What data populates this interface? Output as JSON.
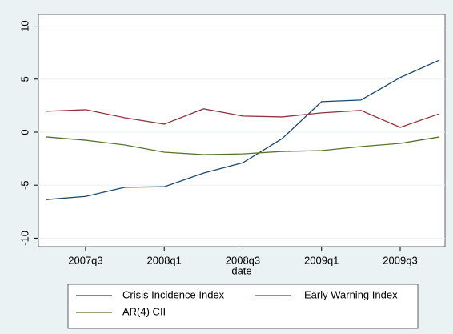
{
  "chart_data": {
    "type": "line",
    "x": [
      189,
      190,
      191,
      192,
      193,
      194,
      195,
      196,
      197,
      198,
      199
    ],
    "xlim": [
      188.8,
      199.14
    ],
    "xticks": [
      {
        "value": 190,
        "label": "2007q3"
      },
      {
        "value": 192,
        "label": "2008q1"
      },
      {
        "value": 194,
        "label": "2008q3"
      },
      {
        "value": 196,
        "label": "2009q1"
      },
      {
        "value": 198,
        "label": "2009q3"
      }
    ],
    "x_label": "date",
    "ylim": [
      -10.8,
      11.1
    ],
    "yticks": [
      -10,
      -5,
      0,
      5,
      10
    ],
    "grid": true,
    "series": [
      {
        "name": "Crisis Incidence Index",
        "color": "#1a476f",
        "values": [
          -6.36,
          -6.06,
          -5.2,
          -5.15,
          -3.86,
          -2.88,
          -0.6,
          2.88,
          3.03,
          5.15,
          6.8
        ]
      },
      {
        "name": "Early Warning Index",
        "color": "#90353b",
        "values": [
          1.97,
          2.12,
          1.36,
          0.76,
          2.2,
          1.52,
          1.44,
          1.82,
          2.05,
          0.45,
          1.74
        ]
      },
      {
        "name": "AR(4) CII",
        "color": "#55752f",
        "values": [
          -0.45,
          -0.76,
          -1.21,
          -1.89,
          -2.12,
          -2.05,
          -1.82,
          -1.74,
          -1.36,
          -1.06,
          -0.45
        ]
      }
    ]
  }
}
